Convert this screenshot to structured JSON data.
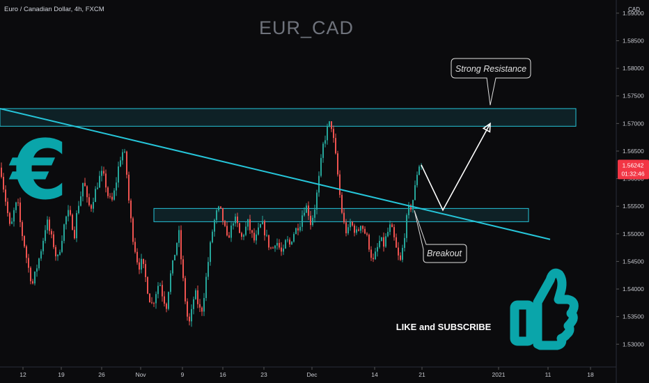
{
  "header": {
    "symbol_desc": "Euro / Canadian Dollar, 4h, FXCM",
    "watermark": "EUR_CAD",
    "currency": "CAD"
  },
  "price_tag": {
    "value": "1.56242",
    "countdown": "01:32:46",
    "color": "#f23645"
  },
  "annotations": {
    "strong_resistance": "Strong Resistance",
    "breakout": "Breakout",
    "cta": "LIKE and SUBSCRIBE"
  },
  "icons": {
    "currency": "euro-symbol-icon",
    "like": "thumbs-up-icon"
  },
  "colors": {
    "accent": "#26c6da",
    "logo": "#0aa5aa",
    "up": "#26a69a",
    "down": "#ef5350",
    "bg": "#0b0b0d"
  },
  "chart_data": {
    "type": "candlestick",
    "symbol": "EUR_CAD",
    "interval": "4h",
    "ylim": [
      1.5265,
      1.5915
    ],
    "x_ticks": [
      "12",
      "19",
      "26",
      "Nov",
      "9",
      "16",
      "23",
      "Dec",
      "14",
      "21",
      "2021",
      "11",
      "18"
    ],
    "y_ticks": [
      "1.53000",
      "1.53500",
      "1.54000",
      "1.54500",
      "1.55000",
      "1.55500",
      "1.56000",
      "1.56500",
      "1.57000",
      "1.57500",
      "1.58000",
      "1.58500",
      "1.59000"
    ],
    "last_price": 1.56242,
    "path_points": [
      [
        0,
        1.562
      ],
      [
        4,
        1.5585
      ],
      [
        9,
        1.5545
      ],
      [
        14,
        1.5505
      ],
      [
        19,
        1.554
      ],
      [
        24,
        1.556
      ],
      [
        29,
        1.551
      ],
      [
        34,
        1.548
      ],
      [
        38,
        1.545
      ],
      [
        42,
        1.5425
      ],
      [
        46,
        1.541
      ],
      [
        51,
        1.5435
      ],
      [
        56,
        1.546
      ],
      [
        61,
        1.549
      ],
      [
        66,
        1.5525
      ],
      [
        71,
        1.55
      ],
      [
        76,
        1.548
      ],
      [
        81,
        1.545
      ],
      [
        86,
        1.548
      ],
      [
        91,
        1.5515
      ],
      [
        96,
        1.554
      ],
      [
        101,
        1.5525
      ],
      [
        106,
        1.55
      ],
      [
        110,
        1.5545
      ],
      [
        115,
        1.557
      ],
      [
        119,
        1.56
      ],
      [
        124,
        1.556
      ],
      [
        129,
        1.5545
      ],
      [
        134,
        1.557
      ],
      [
        139,
        1.559
      ],
      [
        144,
        1.561
      ],
      [
        149,
        1.56
      ],
      [
        154,
        1.557
      ],
      [
        159,
        1.5555
      ],
      [
        164,
        1.558
      ],
      [
        169,
        1.562
      ],
      [
        174,
        1.565
      ],
      [
        179,
        1.564
      ],
      [
        184,
        1.556
      ],
      [
        189,
        1.55
      ],
      [
        194,
        1.5465
      ],
      [
        198,
        1.544
      ],
      [
        203,
        1.545
      ],
      [
        208,
        1.542
      ],
      [
        213,
        1.5385
      ],
      [
        218,
        1.537
      ],
      [
        223,
        1.5395
      ],
      [
        228,
        1.5415
      ],
      [
        233,
        1.5385
      ],
      [
        238,
        1.537
      ],
      [
        243,
        1.542
      ],
      [
        248,
        1.545
      ],
      [
        252,
        1.548
      ],
      [
        256,
        1.55
      ],
      [
        260,
        1.544
      ],
      [
        264,
        1.539
      ],
      [
        268,
        1.535
      ],
      [
        272,
        1.5335
      ],
      [
        276,
        1.538
      ],
      [
        280,
        1.539
      ],
      [
        284,
        1.537
      ],
      [
        288,
        1.5355
      ],
      [
        292,
        1.539
      ],
      [
        296,
        1.543
      ],
      [
        300,
        1.547
      ],
      [
        304,
        1.5505
      ],
      [
        308,
        1.553
      ],
      [
        312,
        1.5545
      ],
      [
        316,
        1.554
      ],
      [
        320,
        1.552
      ],
      [
        325,
        1.549
      ],
      [
        330,
        1.5505
      ],
      [
        335,
        1.553
      ],
      [
        340,
        1.5515
      ],
      [
        345,
        1.549
      ],
      [
        350,
        1.5505
      ],
      [
        355,
        1.552
      ],
      [
        360,
        1.55
      ],
      [
        365,
        1.5485
      ],
      [
        370,
        1.5505
      ],
      [
        375,
        1.552
      ],
      [
        380,
        1.55
      ],
      [
        385,
        1.548
      ],
      [
        390,
        1.547
      ],
      [
        395,
        1.549
      ],
      [
        400,
        1.5475
      ],
      [
        405,
        1.546
      ],
      [
        410,
        1.549
      ],
      [
        415,
        1.548
      ],
      [
        420,
        1.55
      ],
      [
        425,
        1.551
      ],
      [
        430,
        1.552
      ],
      [
        435,
        1.5545
      ],
      [
        440,
        1.555
      ],
      [
        445,
        1.552
      ],
      [
        450,
        1.554
      ],
      [
        455,
        1.558
      ],
      [
        459,
        1.562
      ],
      [
        463,
        1.566
      ],
      [
        467,
        1.568
      ],
      [
        471,
        1.57
      ],
      [
        475,
        1.5695
      ],
      [
        479,
        1.566
      ],
      [
        483,
        1.562
      ],
      [
        486,
        1.558
      ],
      [
        490,
        1.554
      ],
      [
        494,
        1.551
      ],
      [
        498,
        1.55
      ],
      [
        502,
        1.552
      ],
      [
        507,
        1.551
      ],
      [
        512,
        1.55
      ],
      [
        517,
        1.552
      ],
      [
        522,
        1.5505
      ],
      [
        527,
        1.549
      ],
      [
        531,
        1.5465
      ],
      [
        535,
        1.545
      ],
      [
        540,
        1.547
      ],
      [
        545,
        1.549
      ],
      [
        550,
        1.548
      ],
      [
        555,
        1.55
      ],
      [
        560,
        1.5515
      ],
      [
        565,
        1.549
      ],
      [
        570,
        1.546
      ],
      [
        574,
        1.545
      ],
      [
        578,
        1.548
      ],
      [
        582,
        1.552
      ],
      [
        586,
        1.5545
      ],
      [
        590,
        1.555
      ],
      [
        594,
        1.5575
      ],
      [
        598,
        1.561
      ],
      [
        602,
        1.563
      ],
      [
        605,
        1.5624
      ]
    ],
    "resistance_zone": [
      1.5695,
      1.5727
    ],
    "support_zone": [
      1.5522,
      1.5546
    ],
    "trendline": [
      [
        0,
        1.5727
      ],
      [
        790,
        1.549
      ]
    ],
    "projection": [
      [
        605,
        1.5625
      ],
      [
        636,
        1.5543
      ],
      [
        704,
        1.57
      ]
    ]
  }
}
